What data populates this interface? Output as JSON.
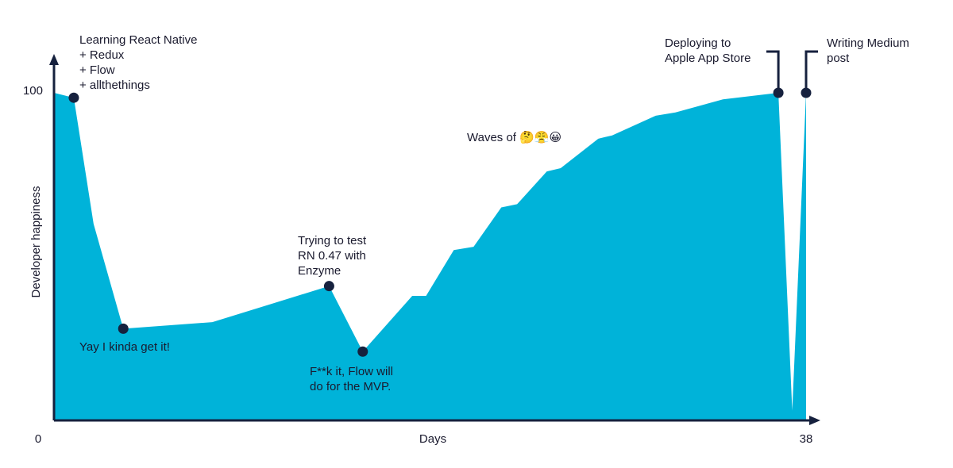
{
  "chart_data": {
    "type": "area",
    "x_label": "Days",
    "y_label": "Developer happiness",
    "color": "#00b3d9",
    "x": [
      0,
      1,
      2,
      3.5,
      8,
      13.9,
      15.6,
      18.1,
      18.8,
      20.2,
      21.2,
      22.6,
      23.4,
      24.9,
      25.6,
      27.5,
      28.2,
      30.4,
      31.4,
      33.8,
      36.6,
      37.3,
      38
    ],
    "values": [
      100,
      98.5,
      60,
      28,
      30,
      41,
      21,
      38,
      38,
      52,
      53,
      65,
      66,
      76,
      77,
      86,
      87,
      93,
      94,
      98,
      100,
      3,
      100
    ],
    "xlim": [
      0,
      38
    ],
    "ylim": [
      0,
      100
    ],
    "xticks": [
      0,
      38
    ],
    "yticks": [
      100
    ],
    "annotations": [
      {
        "x": 1,
        "y": 98.5,
        "text": [
          "Learning React Native",
          "+ Redux",
          "+ Flow",
          "+ allthethings"
        ]
      },
      {
        "x": 3.5,
        "y": 28,
        "text": [
          "Yay I kinda get it!"
        ]
      },
      {
        "x": 13.9,
        "y": 41,
        "text": [
          "Trying to test",
          "RN 0.47 with",
          "Enzyme"
        ]
      },
      {
        "x": 15.6,
        "y": 21,
        "text": [
          "F**k it, Flow will",
          "do for the MVP."
        ]
      },
      {
        "x": 36.6,
        "y": 100,
        "text": [
          "Deploying to",
          "Apple App Store"
        ]
      },
      {
        "x": 38,
        "y": 100,
        "text": [
          "Writing Medium",
          "post"
        ]
      }
    ],
    "note": "Waves of 🤔😤😀"
  }
}
